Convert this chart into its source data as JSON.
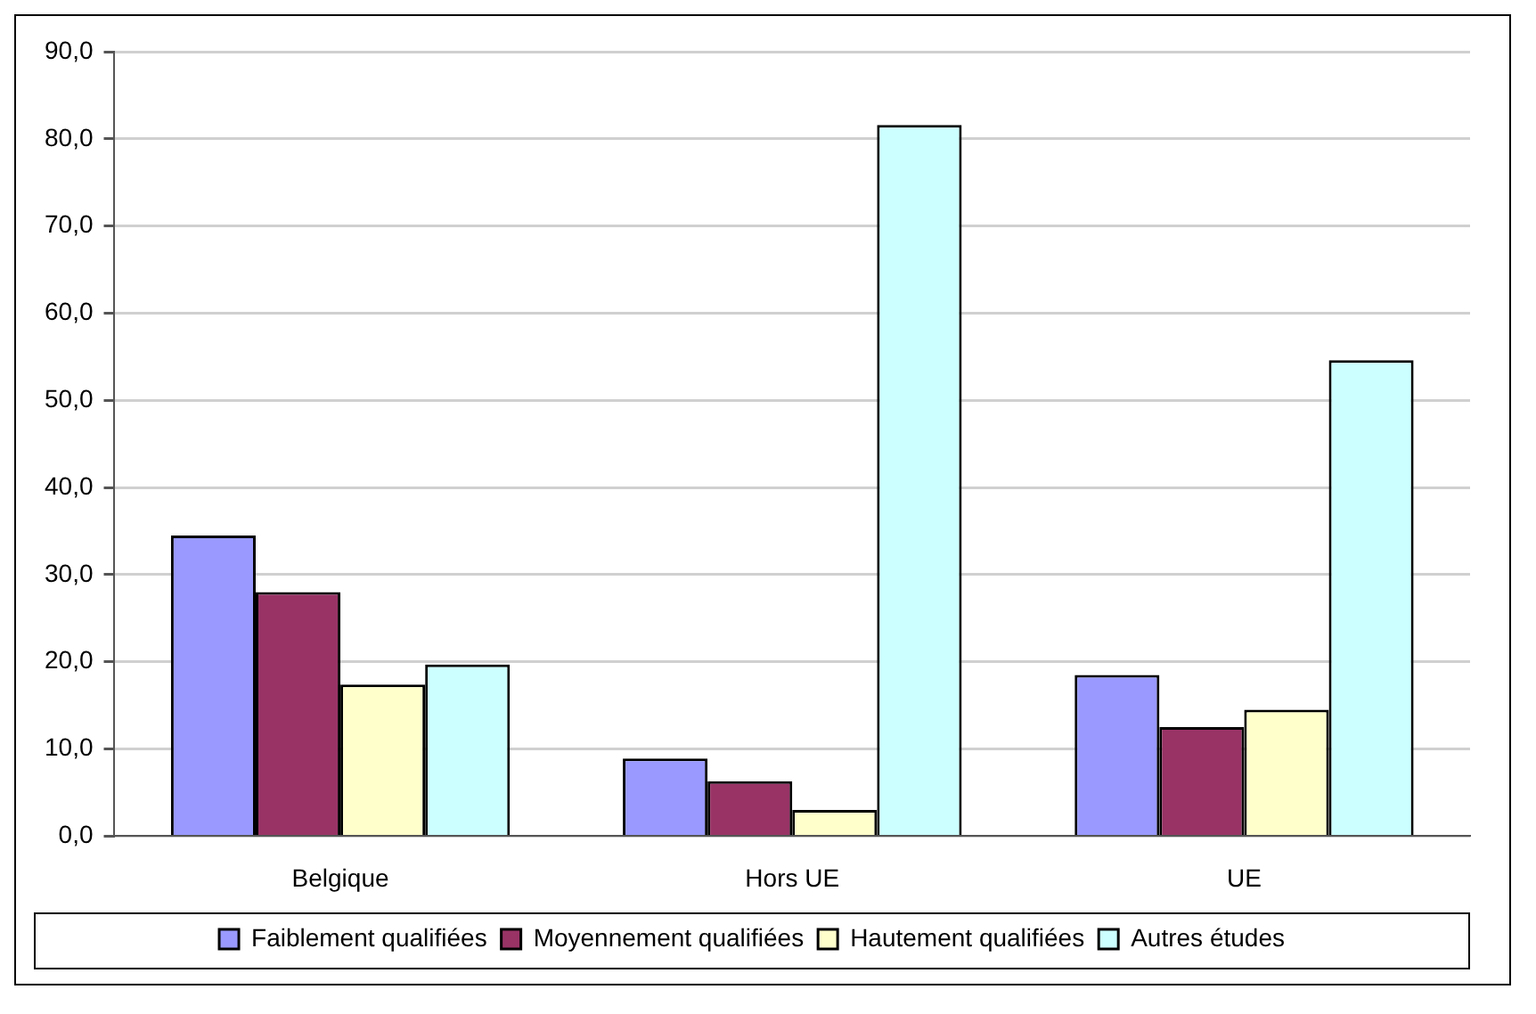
{
  "chart_data": {
    "type": "bar",
    "categories": [
      "Belgique",
      "Hors UE",
      "UE"
    ],
    "series": [
      {
        "name": "Faiblement qualifiées",
        "color": "#9999ff",
        "values": [
          34.5,
          8.9,
          18.5
        ]
      },
      {
        "name": "Moyennement qualifiées",
        "color": "#993366",
        "values": [
          28.0,
          6.3,
          12.5
        ]
      },
      {
        "name": "Hautement qualifiées",
        "color": "#ffffcc",
        "values": [
          17.4,
          3.0,
          14.5
        ]
      },
      {
        "name": "Autres études",
        "color": "#ccffff",
        "values": [
          19.7,
          81.6,
          54.6
        ]
      }
    ],
    "ylim": [
      0,
      90
    ],
    "yticks": [
      {
        "value": 0,
        "label": "0,0"
      },
      {
        "value": 10,
        "label": "10,0"
      },
      {
        "value": 20,
        "label": "20,0"
      },
      {
        "value": 30,
        "label": "30,0"
      },
      {
        "value": 40,
        "label": "40,0"
      },
      {
        "value": 50,
        "label": "50,0"
      },
      {
        "value": 60,
        "label": "60,0"
      },
      {
        "value": 70,
        "label": "70,0"
      },
      {
        "value": 80,
        "label": "80,0"
      },
      {
        "value": 90,
        "label": "90,0"
      }
    ],
    "grid": "y",
    "legend": "bottom"
  }
}
